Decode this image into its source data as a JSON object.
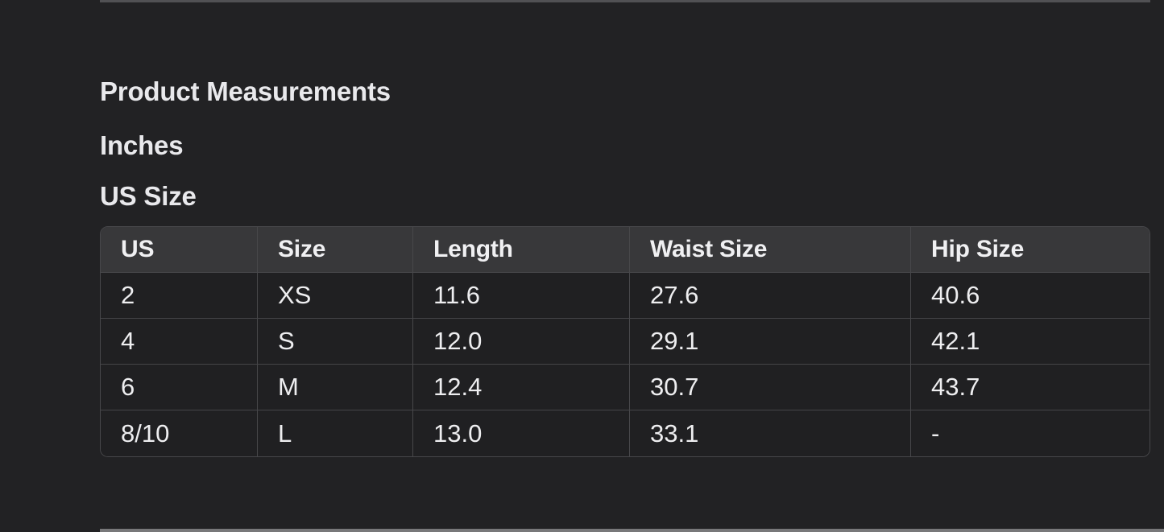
{
  "colors": {
    "page_background": "#222224",
    "header_background": "#38383a",
    "cell_background": "#202022",
    "table_border": "#47474a",
    "text": "#eeeef0",
    "top_divider": "#515154",
    "bottom_divider": "#78787a"
  },
  "section": {
    "title": "Product Measurements",
    "units_heading": "Inches",
    "size_system_heading": "US Size"
  },
  "size_table": {
    "columns": [
      "US",
      "Size",
      "Length",
      "Waist Size",
      "Hip Size"
    ],
    "rows": [
      [
        "2",
        "XS",
        "11.6",
        "27.6",
        "40.6"
      ],
      [
        "4",
        "S",
        "12.0",
        "29.1",
        "42.1"
      ],
      [
        "6",
        "M",
        "12.4",
        "30.7",
        "43.7"
      ],
      [
        "8/10",
        "L",
        "13.0",
        "33.1",
        "-"
      ]
    ]
  }
}
